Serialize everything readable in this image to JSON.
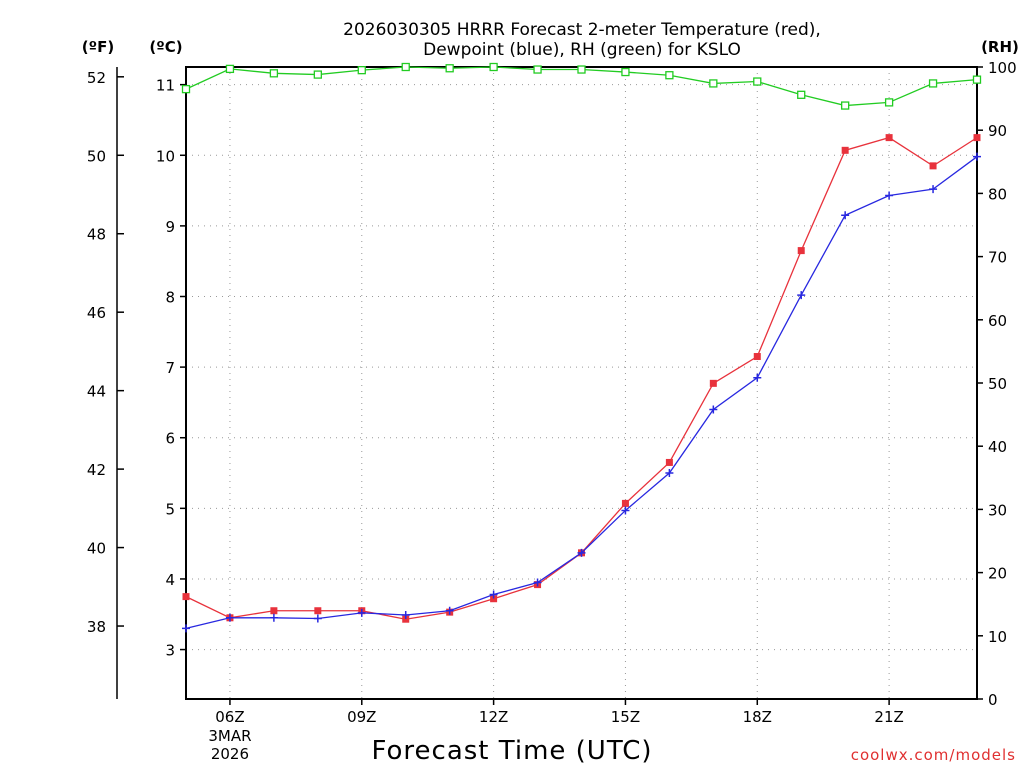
{
  "chart_data": {
    "type": "line",
    "title_line1": "2026030305 HRRR Forecast 2-meter Temperature (red),",
    "title_line2": "Dewpoint (blue), RH (green) for KSLO",
    "xlabel": "Forecast Time (UTC)",
    "credit": "coolwx.com/models",
    "unit_f": "(ºF)",
    "unit_c": "(ºC)",
    "unit_rh": "(RH)",
    "x_hours": [
      5,
      6,
      7,
      8,
      9,
      10,
      11,
      12,
      13,
      14,
      15,
      16,
      17,
      18,
      19,
      20,
      21,
      22,
      23
    ],
    "xlim": [
      5,
      23
    ],
    "x_ticks": [
      {
        "hour": 6,
        "label": "06Z",
        "sub1": "3MAR",
        "sub2": "2026"
      },
      {
        "hour": 9,
        "label": "09Z"
      },
      {
        "hour": 12,
        "label": "12Z"
      },
      {
        "hour": 15,
        "label": "15Z"
      },
      {
        "hour": 18,
        "label": "18Z"
      },
      {
        "hour": 21,
        "label": "21Z"
      }
    ],
    "ylim_celsius": [
      2.3,
      11.25
    ],
    "celsius_ticks": [
      "3",
      "4",
      "5",
      "6",
      "7",
      "8",
      "9",
      "10",
      "11"
    ],
    "fahrenheit_ticks": [
      "38",
      "40",
      "42",
      "44",
      "46",
      "48",
      "50",
      "52"
    ],
    "rh_ticks": [
      "0",
      "10",
      "20",
      "30",
      "40",
      "50",
      "60",
      "70",
      "80",
      "90",
      "100"
    ],
    "ylim_rh": [
      0,
      100
    ],
    "series": [
      {
        "name": "Temperature",
        "unit": "C",
        "color": "#e8323c",
        "marker": "square-filled",
        "values": [
          3.75,
          3.45,
          3.55,
          3.55,
          3.55,
          3.43,
          3.53,
          3.72,
          3.92,
          4.37,
          5.07,
          5.65,
          6.77,
          7.15,
          8.65,
          10.07,
          10.25,
          9.85,
          10.25
        ]
      },
      {
        "name": "Dewpoint",
        "unit": "C",
        "color": "#2828e0",
        "marker": "plus",
        "values": [
          3.3,
          3.45,
          3.45,
          3.44,
          3.52,
          3.49,
          3.55,
          3.78,
          3.95,
          4.37,
          4.97,
          5.5,
          6.4,
          6.85,
          8.02,
          9.15,
          9.43,
          9.52,
          9.98
        ]
      },
      {
        "name": "RH",
        "unit": "%",
        "color": "#22cc22",
        "marker": "square-open",
        "values": [
          96.5,
          99.7,
          99.0,
          98.8,
          99.5,
          100,
          99.8,
          100,
          99.6,
          99.6,
          99.2,
          98.7,
          97.4,
          97.7,
          95.6,
          93.9,
          94.4,
          97.4,
          98.0
        ]
      }
    ]
  }
}
